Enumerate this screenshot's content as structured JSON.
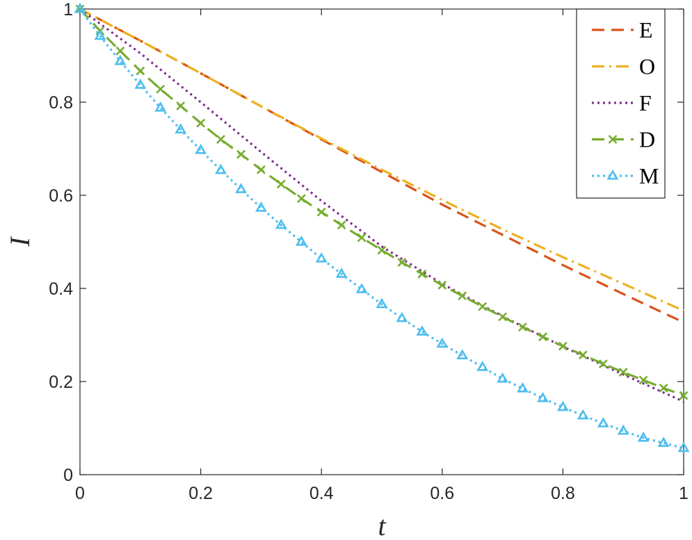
{
  "chart_data": {
    "type": "line",
    "title": "",
    "xlabel": "t",
    "ylabel": "I",
    "xlim": [
      0,
      1
    ],
    "ylim": [
      0,
      1
    ],
    "xticks": [
      0,
      0.2,
      0.4,
      0.6,
      0.8,
      1
    ],
    "yticks": [
      0,
      0.2,
      0.4,
      0.6,
      0.8,
      1
    ],
    "xtick_labels": [
      "0",
      "0.2",
      "0.4",
      "0.6",
      "0.8",
      "1"
    ],
    "ytick_labels": [
      "0",
      "0.2",
      "0.4",
      "0.6",
      "0.8",
      "1"
    ],
    "grid": false,
    "legend_position": "top-right",
    "series": [
      {
        "name": "E",
        "color": "#D95319",
        "dash": "dashed",
        "marker": "none",
        "x": [
          0,
          0.1,
          0.2,
          0.3,
          0.4,
          0.5,
          0.6,
          0.7,
          0.8,
          0.9,
          1
        ],
        "y": [
          1,
          0.932,
          0.862,
          0.791,
          0.72,
          0.65,
          0.58,
          0.515,
          0.45,
          0.388,
          0.327
        ]
      },
      {
        "name": "O",
        "color": "#EDB120",
        "dash": "dashdot",
        "marker": "none",
        "x": [
          0,
          0.1,
          0.2,
          0.3,
          0.4,
          0.5,
          0.6,
          0.7,
          0.8,
          0.9,
          1
        ],
        "y": [
          1,
          0.932,
          0.862,
          0.791,
          0.722,
          0.655,
          0.59,
          0.527,
          0.467,
          0.41,
          0.352
        ]
      },
      {
        "name": "F",
        "color": "#7E2F8E",
        "dash": "dotted",
        "marker": "none",
        "x": [
          0,
          0.1,
          0.2,
          0.3,
          0.4,
          0.5,
          0.6,
          0.7,
          0.8,
          0.9,
          1
        ],
        "y": [
          1,
          0.905,
          0.8,
          0.693,
          0.588,
          0.49,
          0.41,
          0.34,
          0.275,
          0.215,
          0.157
        ]
      },
      {
        "name": "D",
        "color": "#77AC30",
        "dash": "dashed",
        "marker": "x",
        "x": [
          0,
          0.0333,
          0.0667,
          0.1,
          0.1333,
          0.1667,
          0.2,
          0.2333,
          0.2667,
          0.3,
          0.3333,
          0.3667,
          0.4,
          0.4333,
          0.4667,
          0.5,
          0.5333,
          0.5667,
          0.6,
          0.6333,
          0.6667,
          0.7,
          0.7333,
          0.7667,
          0.8,
          0.8333,
          0.8667,
          0.9,
          0.9333,
          0.9667,
          1
        ],
        "y": [
          1,
          0.953,
          0.91,
          0.867,
          0.828,
          0.792,
          0.755,
          0.72,
          0.688,
          0.655,
          0.624,
          0.593,
          0.564,
          0.536,
          0.509,
          0.482,
          0.456,
          0.431,
          0.407,
          0.384,
          0.361,
          0.339,
          0.317,
          0.296,
          0.276,
          0.257,
          0.238,
          0.22,
          0.203,
          0.186,
          0.17
        ]
      },
      {
        "name": "M",
        "color": "#4DBEEE",
        "dash": "dotted",
        "marker": "triangle",
        "x": [
          0,
          0.0333,
          0.0667,
          0.1,
          0.1333,
          0.1667,
          0.2,
          0.2333,
          0.2667,
          0.3,
          0.3333,
          0.3667,
          0.4,
          0.4333,
          0.4667,
          0.5,
          0.5333,
          0.5667,
          0.6,
          0.6333,
          0.6667,
          0.7,
          0.7333,
          0.7667,
          0.8,
          0.8333,
          0.8667,
          0.9,
          0.9333,
          0.9667,
          1
        ],
        "y": [
          1,
          0.942,
          0.888,
          0.837,
          0.788,
          0.741,
          0.697,
          0.654,
          0.613,
          0.573,
          0.536,
          0.5,
          0.464,
          0.431,
          0.398,
          0.366,
          0.336,
          0.307,
          0.281,
          0.256,
          0.231,
          0.206,
          0.185,
          0.164,
          0.145,
          0.127,
          0.11,
          0.094,
          0.079,
          0.068,
          0.057
        ]
      }
    ]
  }
}
